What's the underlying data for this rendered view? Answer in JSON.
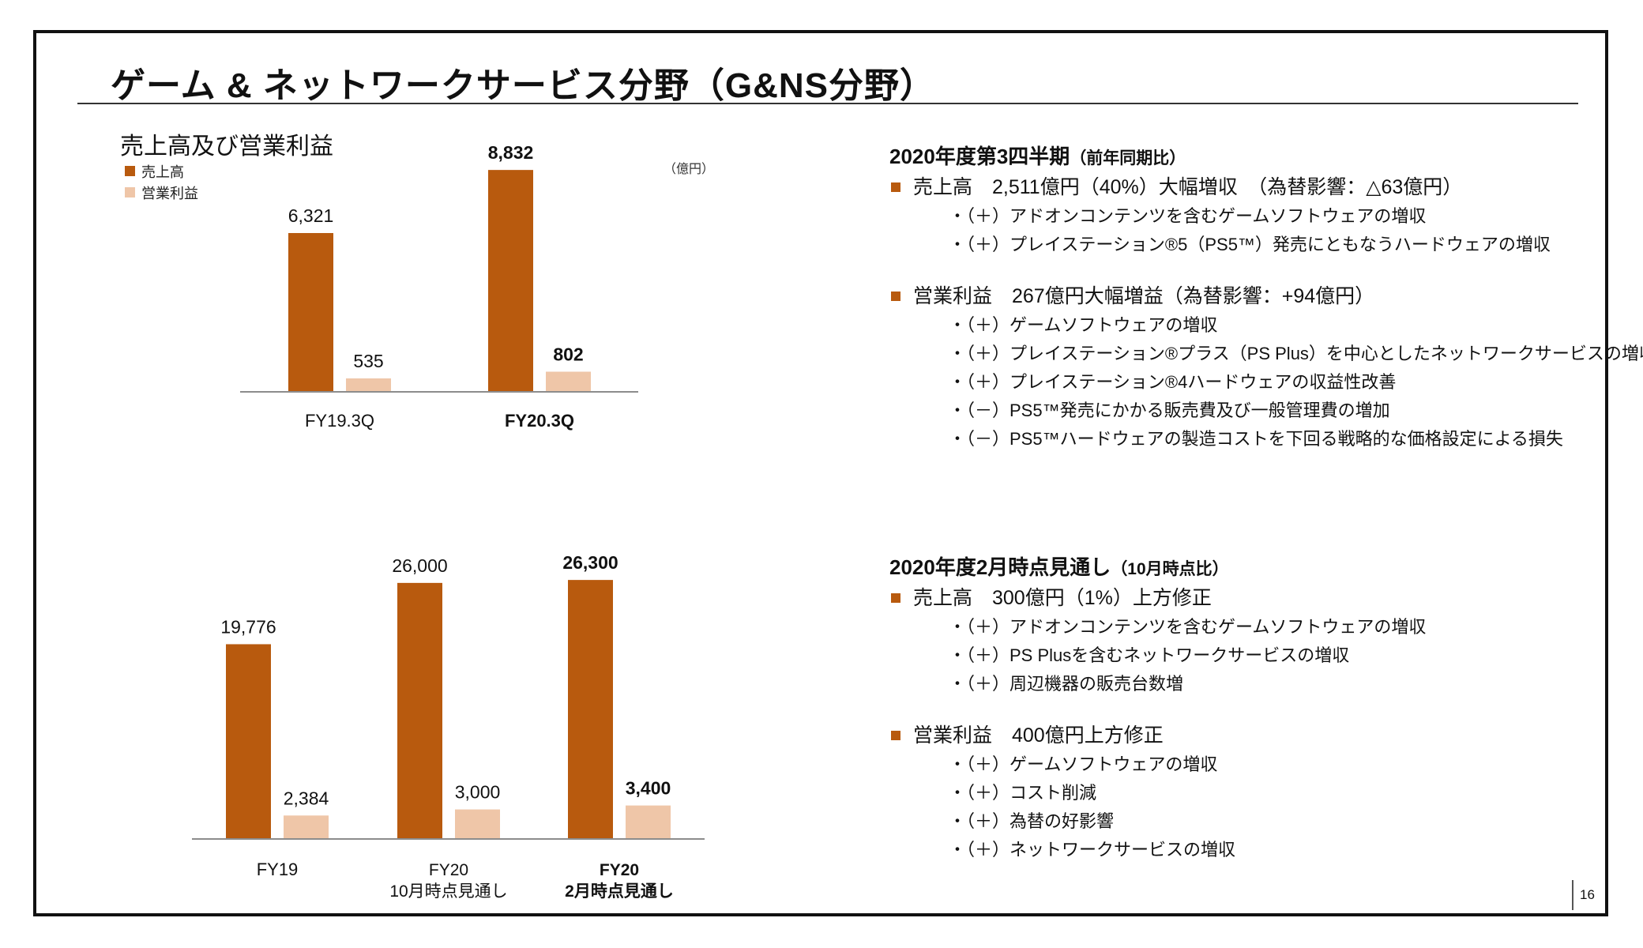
{
  "title": "ゲーム & ネットワークサービス分野（G&NS分野）",
  "page_number": "16",
  "colors": {
    "sales": "#b85a0e",
    "op": "#efc6a8",
    "axis": "#8c8c8c",
    "bullet": "#b85a0e"
  },
  "chart_data": [
    {
      "type": "bar",
      "title": "売上高及び営業利益",
      "unit": "（億円）",
      "legend": [
        "売上高",
        "営業利益"
      ],
      "categories": [
        {
          "lines": [
            "FY19.3Q"
          ],
          "bold": false
        },
        {
          "lines": [
            "FY20.3Q"
          ],
          "bold": true
        }
      ],
      "series": [
        {
          "name": "売上高",
          "values": [
            6321,
            8832
          ],
          "labels": [
            "6,321",
            "8,832"
          ]
        },
        {
          "name": "営業利益",
          "values": [
            535,
            802
          ],
          "labels": [
            "535",
            "802"
          ]
        }
      ],
      "ylim": [
        0,
        10000
      ]
    },
    {
      "type": "bar",
      "title": "",
      "categories": [
        {
          "lines": [
            "FY19"
          ],
          "bold": false
        },
        {
          "lines": [
            "FY20",
            "10月時点見通し"
          ],
          "bold": false
        },
        {
          "lines": [
            "FY20",
            "2月時点見通し"
          ],
          "bold": true
        }
      ],
      "series": [
        {
          "name": "売上高",
          "values": [
            19776,
            26000,
            26300
          ],
          "labels": [
            "19,776",
            "26,000",
            "26,300"
          ]
        },
        {
          "name": "営業利益",
          "values": [
            2384,
            3000,
            3400
          ],
          "labels": [
            "2,384",
            "3,000",
            "3,400"
          ]
        }
      ],
      "ylim": [
        0,
        30000
      ]
    }
  ],
  "section1": {
    "heading": "2020年度第3四半期",
    "heading_note": "（前年同期比）",
    "groups": [
      {
        "head": "売上高　2,511億円（40%）大幅増収　（為替影響：△63億円）",
        "subs": [
          "・（＋）アドオンコンテンツを含むゲームソフトウェアの増収",
          "・（＋）プレイステーション®5（PS5™）発売にともなうハードウェアの増収"
        ]
      },
      {
        "head": "営業利益　267億円大幅増益（為替影響：+94億円）",
        "subs": [
          "・（＋）ゲームソフトウェアの増収",
          "・（＋）プレイステーション®プラス（PS Plus）を中心としたネットワークサービスの増収",
          "・（＋）プレイステーション®4ハードウェアの収益性改善",
          "・（－）PS5™発売にかかる販売費及び一般管理費の増加",
          "・（－）PS5™ハードウェアの製造コストを下回る戦略的な価格設定による損失"
        ]
      }
    ]
  },
  "section2": {
    "heading": "2020年度2月時点見通し",
    "heading_note": "（10月時点比）",
    "groups": [
      {
        "head": "売上高　300億円（1%）上方修正",
        "subs": [
          "・（＋）アドオンコンテンツを含むゲームソフトウェアの増収",
          "・（＋）PS Plusを含むネットワークサービスの増収",
          "・（＋）周辺機器の販売台数増"
        ]
      },
      {
        "head": "営業利益　400億円上方修正",
        "subs": [
          "・（＋）ゲームソフトウェアの増収",
          "・（＋）コスト削減",
          "・（＋）為替の好影響",
          "・（＋）ネットワークサービスの増収"
        ]
      }
    ]
  }
}
